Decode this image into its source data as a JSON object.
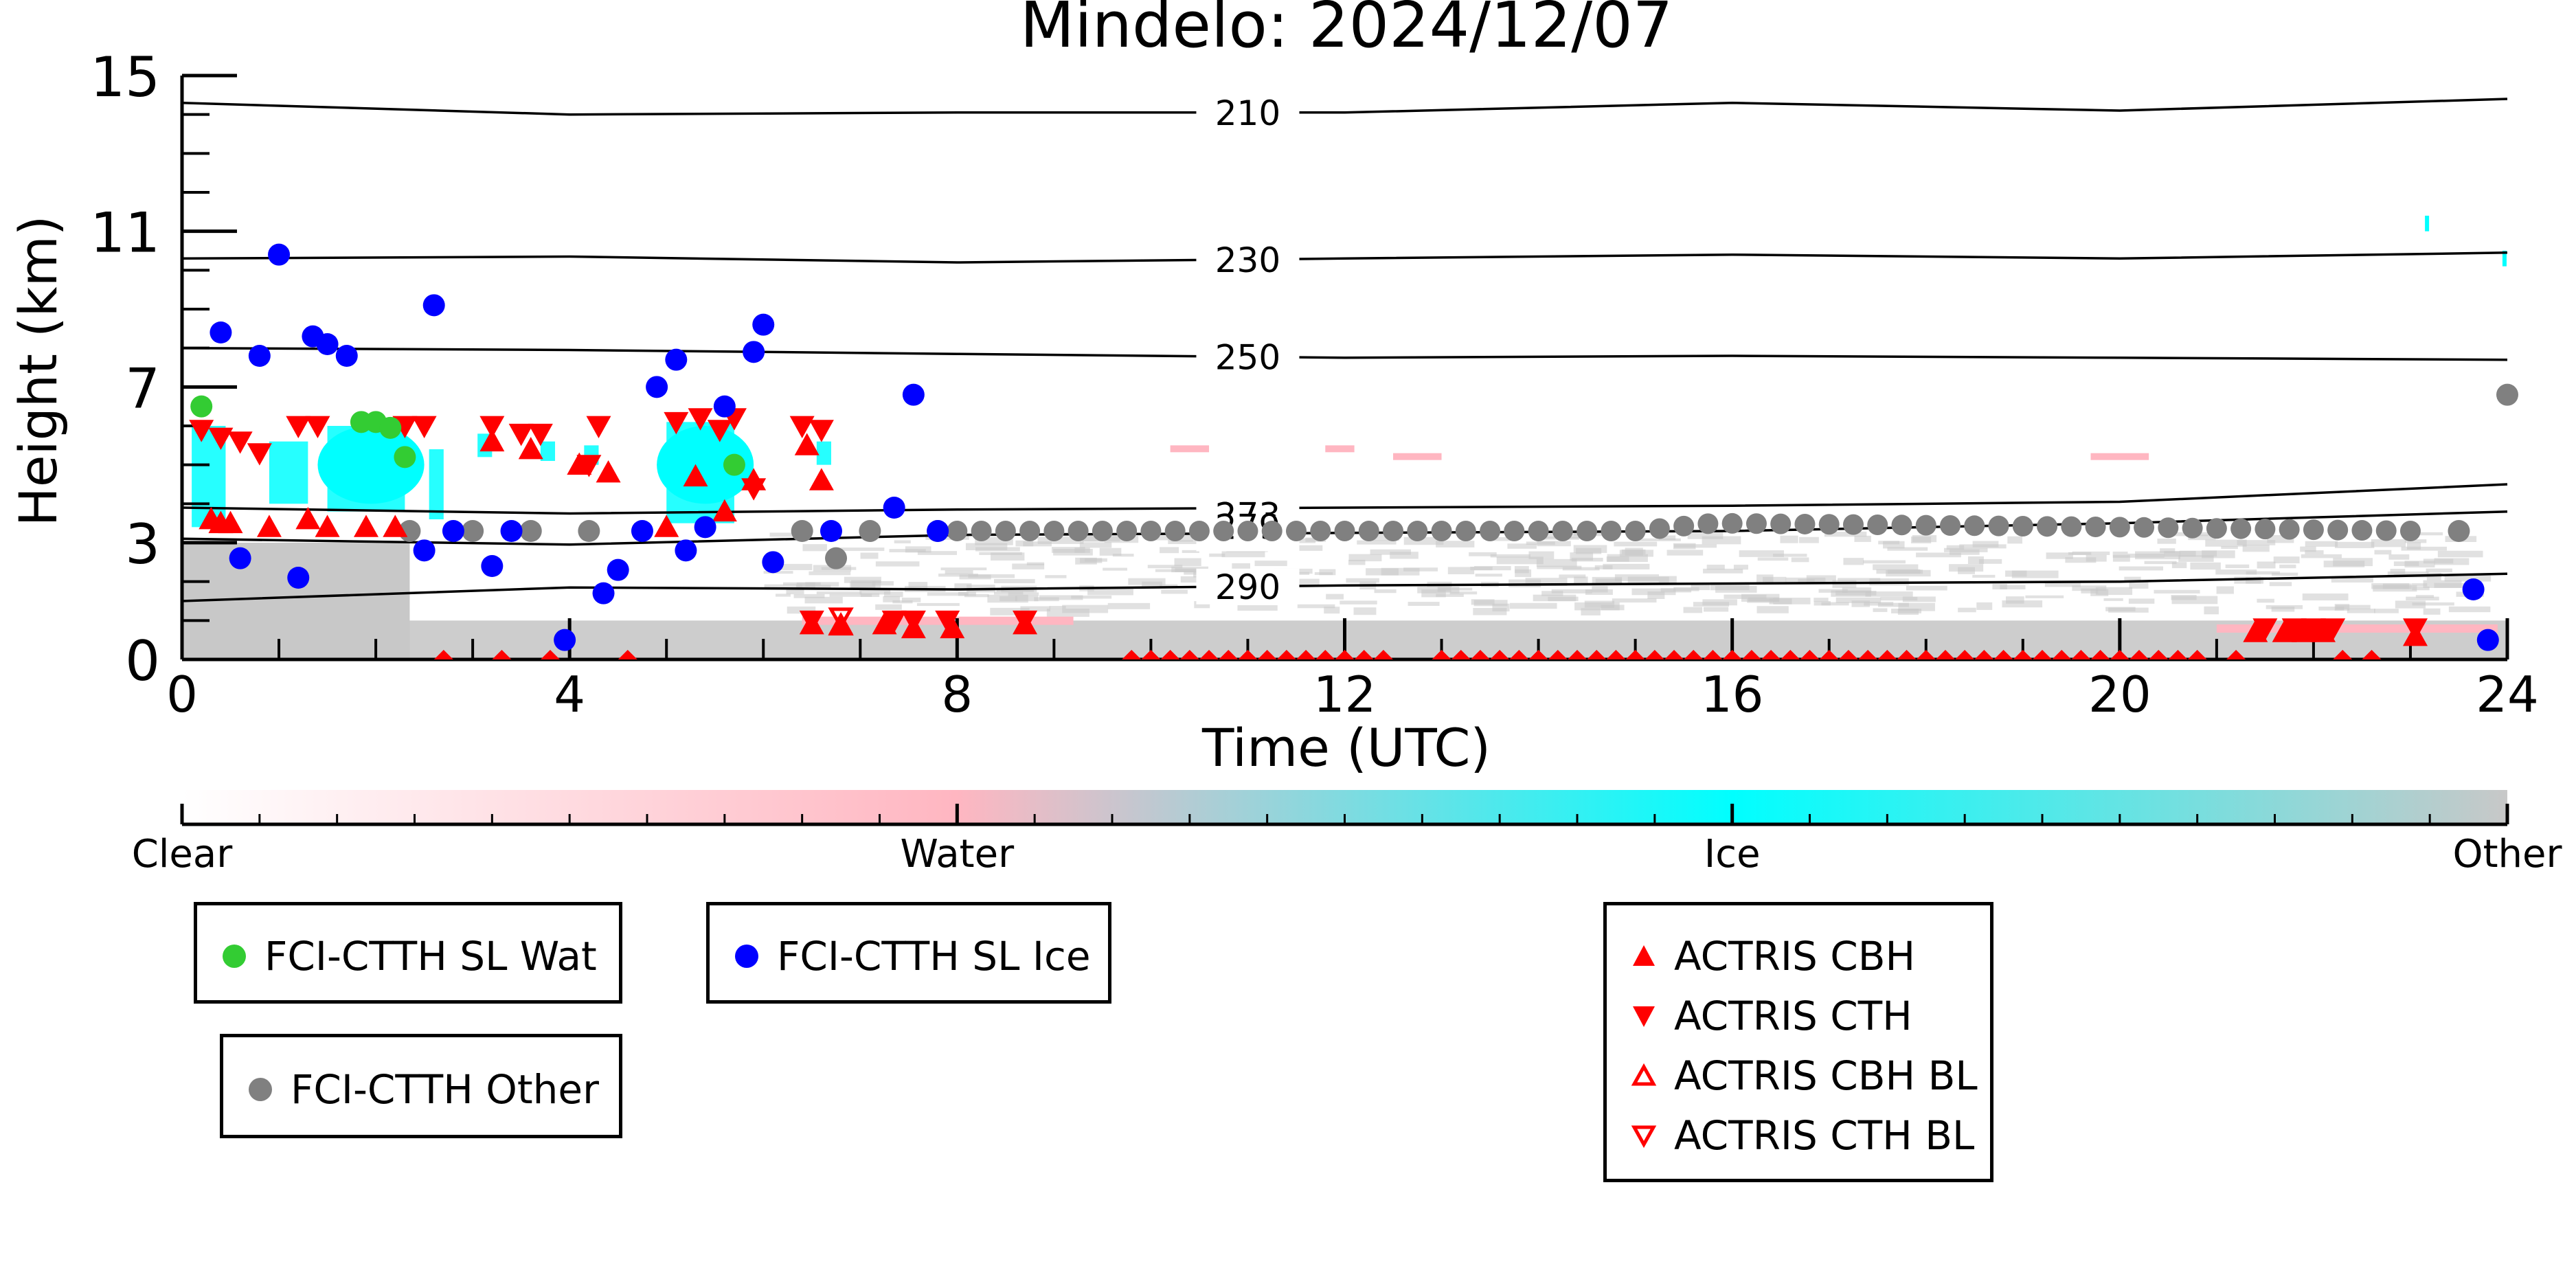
{
  "chart_data": {
    "type": "scatter",
    "title": "Mindelo: 2024/12/07",
    "xlabel": "Time (UTC)",
    "ylabel": "Height (km)",
    "xlim": [
      0,
      24
    ],
    "ylim": [
      0,
      15
    ],
    "x_ticks": [
      0,
      4,
      8,
      12,
      16,
      20,
      24
    ],
    "y_ticks": [
      0,
      3,
      7,
      11,
      15
    ],
    "isotherms": [
      {
        "label": "210",
        "points": [
          [
            0,
            14.3
          ],
          [
            4,
            14.0
          ],
          [
            8,
            14.05
          ],
          [
            12,
            14.05
          ],
          [
            16,
            14.3
          ],
          [
            20,
            14.1
          ],
          [
            24,
            14.4
          ]
        ]
      },
      {
        "label": "230",
        "points": [
          [
            0,
            10.3
          ],
          [
            4,
            10.35
          ],
          [
            8,
            10.2
          ],
          [
            12,
            10.3
          ],
          [
            16,
            10.4
          ],
          [
            20,
            10.3
          ],
          [
            24,
            10.45
          ]
        ]
      },
      {
        "label": "250",
        "points": [
          [
            0,
            8.0
          ],
          [
            4,
            7.95
          ],
          [
            8,
            7.85
          ],
          [
            12,
            7.75
          ],
          [
            16,
            7.8
          ],
          [
            20,
            7.75
          ],
          [
            24,
            7.7
          ]
        ]
      },
      {
        "label": "273",
        "points": [
          [
            0,
            3.9
          ],
          [
            4,
            3.75
          ],
          [
            8,
            3.85
          ],
          [
            12,
            3.9
          ],
          [
            16,
            3.95
          ],
          [
            20,
            4.05
          ],
          [
            24,
            4.5
          ]
        ]
      },
      {
        "label": "279",
        "points": [
          [
            0,
            3.1
          ],
          [
            4,
            2.95
          ],
          [
            8,
            3.2
          ],
          [
            12,
            3.25
          ],
          [
            16,
            3.3
          ],
          [
            20,
            3.5
          ],
          [
            24,
            3.8
          ]
        ]
      },
      {
        "label": "290",
        "points": [
          [
            0,
            1.5
          ],
          [
            4,
            1.85
          ],
          [
            8,
            1.8
          ],
          [
            12,
            1.9
          ],
          [
            16,
            1.95
          ],
          [
            20,
            2.0
          ],
          [
            24,
            2.2
          ]
        ]
      }
    ],
    "series": [
      {
        "name": "FCI-CTTH SL Wat",
        "color": "#33cc33",
        "marker": "circle",
        "points": [
          [
            0.2,
            6.5
          ],
          [
            1.85,
            6.1
          ],
          [
            2.0,
            6.1
          ],
          [
            2.15,
            5.95
          ],
          [
            2.3,
            5.2
          ],
          [
            5.7,
            5.0
          ]
        ]
      },
      {
        "name": "FCI-CTTH SL Ice",
        "color": "#0000ff",
        "marker": "circle",
        "points": [
          [
            0.4,
            8.4
          ],
          [
            0.6,
            2.6
          ],
          [
            0.8,
            7.8
          ],
          [
            1.0,
            10.4
          ],
          [
            1.2,
            2.1
          ],
          [
            1.35,
            8.3
          ],
          [
            1.5,
            8.1
          ],
          [
            1.7,
            7.8
          ],
          [
            2.6,
            9.1
          ],
          [
            2.5,
            2.8
          ],
          [
            2.8,
            3.3
          ],
          [
            3.2,
            2.4
          ],
          [
            3.4,
            3.3
          ],
          [
            3.95,
            0.5
          ],
          [
            4.35,
            1.7
          ],
          [
            4.5,
            2.3
          ],
          [
            4.75,
            3.3
          ],
          [
            4.9,
            7.0
          ],
          [
            5.1,
            7.7
          ],
          [
            5.2,
            2.8
          ],
          [
            5.4,
            3.4
          ],
          [
            5.6,
            6.5
          ],
          [
            5.9,
            7.9
          ],
          [
            6.0,
            8.6
          ],
          [
            6.1,
            2.5
          ],
          [
            6.7,
            3.3
          ],
          [
            7.35,
            3.9
          ],
          [
            7.55,
            6.8
          ],
          [
            7.8,
            3.3
          ],
          [
            23.65,
            1.8
          ],
          [
            23.8,
            0.5
          ]
        ]
      },
      {
        "name": "FCI-CTTH Other",
        "color": "#808080",
        "marker": "circle",
        "points": [
          [
            2.35,
            3.3
          ],
          [
            3.0,
            3.3
          ],
          [
            3.6,
            3.3
          ],
          [
            4.2,
            3.3
          ],
          [
            6.4,
            3.3
          ],
          [
            6.75,
            2.6
          ],
          [
            7.1,
            3.3
          ],
          [
            7.8,
            3.3
          ],
          [
            23.5,
            3.3
          ],
          [
            24,
            6.8
          ]
        ],
        "dense_band": {
          "x_from": 8.0,
          "x_to": 23.0,
          "y_points": [
            [
              8,
              3.3
            ],
            [
              15,
              3.3
            ],
            [
              15.8,
              3.5
            ],
            [
              20,
              3.4
            ],
            [
              23,
              3.3
            ]
          ]
        }
      },
      {
        "name": "ACTRIS CBH",
        "color": "#ff0000",
        "marker": "triangle-up",
        "points": [
          [
            0.3,
            3.6
          ],
          [
            0.4,
            3.5
          ],
          [
            0.5,
            3.5
          ],
          [
            0.9,
            3.4
          ],
          [
            1.3,
            3.6
          ],
          [
            1.5,
            3.4
          ],
          [
            1.9,
            3.4
          ],
          [
            2.2,
            3.4
          ],
          [
            3.2,
            5.6
          ],
          [
            3.6,
            5.4
          ],
          [
            4.1,
            5.0
          ],
          [
            4.4,
            4.8
          ],
          [
            5.0,
            3.4
          ],
          [
            5.3,
            4.7
          ],
          [
            5.6,
            3.8
          ],
          [
            5.9,
            4.6
          ],
          [
            6.45,
            5.5
          ],
          [
            6.6,
            4.6
          ],
          [
            6.5,
            0.9
          ],
          [
            6.8,
            0.9
          ],
          [
            7.25,
            0.9
          ],
          [
            7.55,
            0.8
          ],
          [
            7.95,
            0.8
          ],
          [
            8.7,
            0.9
          ],
          [
            21.4,
            0.7
          ],
          [
            21.7,
            0.7
          ],
          [
            21.9,
            0.7
          ],
          [
            22.1,
            0.7
          ],
          [
            23.05,
            0.6
          ]
        ]
      },
      {
        "name": "ACTRIS CTH",
        "color": "#ff0000",
        "marker": "triangle-down",
        "points": [
          [
            0.2,
            5.9
          ],
          [
            0.4,
            5.7
          ],
          [
            0.6,
            5.6
          ],
          [
            0.8,
            5.3
          ],
          [
            1.2,
            6.0
          ],
          [
            1.4,
            6.0
          ],
          [
            2.3,
            6.0
          ],
          [
            2.5,
            6.0
          ],
          [
            3.2,
            6.0
          ],
          [
            3.5,
            5.8
          ],
          [
            3.7,
            5.8
          ],
          [
            4.2,
            5.0
          ],
          [
            4.3,
            6.0
          ],
          [
            5.1,
            6.1
          ],
          [
            5.35,
            6.2
          ],
          [
            5.55,
            5.9
          ],
          [
            5.7,
            6.2
          ],
          [
            5.9,
            4.4
          ],
          [
            6.4,
            6.0
          ],
          [
            6.6,
            5.9
          ],
          [
            6.5,
            1.0
          ],
          [
            7.35,
            1.0
          ],
          [
            7.55,
            1.0
          ],
          [
            7.9,
            1.0
          ],
          [
            8.7,
            1.0
          ],
          [
            21.5,
            0.8
          ],
          [
            21.8,
            0.8
          ],
          [
            22.0,
            0.8
          ],
          [
            22.2,
            0.8
          ],
          [
            23.05,
            0.8
          ]
        ]
      },
      {
        "name": "ACTRIS CBH BL",
        "color": "#ff0000",
        "marker": "triangle-up-open",
        "points": [
          [
            6.8,
            0.85
          ]
        ]
      },
      {
        "name": "ACTRIS CTH BL",
        "color": "#ff0000",
        "marker": "triangle-down-open",
        "points": [
          [
            6.8,
            1.1
          ]
        ]
      }
    ],
    "surface_markers": {
      "color": "#ff0000",
      "x": [
        2.7,
        3.3,
        3.8,
        4.6,
        9.8,
        10.0,
        10.2,
        10.4,
        10.6,
        10.8,
        11.0,
        11.2,
        11.4,
        11.6,
        11.8,
        12.0,
        12.2,
        12.4,
        13.0,
        13.2,
        13.4,
        13.6,
        13.8,
        14.0,
        14.2,
        14.4,
        14.6,
        14.8,
        15.0,
        15.2,
        15.4,
        15.6,
        15.8,
        16.0,
        16.2,
        16.4,
        16.6,
        16.8,
        17.0,
        17.2,
        17.4,
        17.6,
        17.8,
        18.0,
        18.2,
        18.4,
        18.6,
        18.8,
        19.0,
        19.2,
        19.4,
        19.6,
        19.8,
        20.0,
        20.2,
        20.4,
        20.6,
        20.8,
        21.2,
        22.3,
        22.6
      ]
    },
    "colorbar": {
      "ticks": [
        "Clear",
        "Water",
        "Ice",
        "Other"
      ],
      "stops": [
        "#ffffff",
        "#ffb6c1",
        "#00ffff",
        "#c8c8c8"
      ]
    },
    "legend": [
      {
        "label": "FCI-CTTH SL Wat",
        "color": "#33cc33",
        "marker": "circle"
      },
      {
        "label": "FCI-CTTH SL Ice",
        "color": "#0000ff",
        "marker": "circle"
      },
      {
        "label": "FCI-CTTH Other",
        "color": "#808080",
        "marker": "circle"
      },
      {
        "label": "ACTRIS CBH",
        "color": "#ff0000",
        "marker": "triangle-up"
      },
      {
        "label": "ACTRIS CTH",
        "color": "#ff0000",
        "marker": "triangle-down"
      },
      {
        "label": "ACTRIS CBH BL",
        "color": "#ff0000",
        "marker": "triangle-up-open"
      },
      {
        "label": "ACTRIS CTH BL",
        "color": "#ff0000",
        "marker": "triangle-down-open"
      }
    ],
    "grid": false
  }
}
